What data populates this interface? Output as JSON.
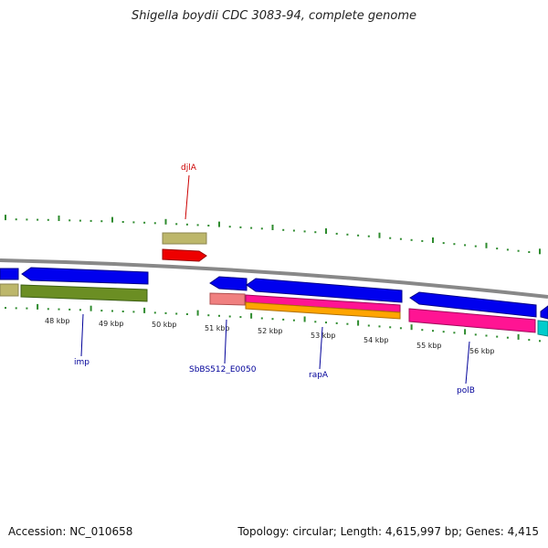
{
  "title": "Shigella boydii CDC 3083-94, complete genome",
  "footer": {
    "accession": "Accession: NC_010658",
    "summary": "Topology: circular; Length: 4,615,997 bp; Genes: 4,415"
  },
  "scale_labels": [
    "48 kbp",
    "49 kbp",
    "50 kbp",
    "51 kbp",
    "52 kbp",
    "53 kbp",
    "54 kbp",
    "55 kbp",
    "56 kbp"
  ],
  "gene_labels": [
    {
      "text": "djlA",
      "color": "#cc0000"
    },
    {
      "text": "imp",
      "color": "#000099"
    },
    {
      "text": "SbBS512_E0050",
      "color": "#000099"
    },
    {
      "text": "rapA",
      "color": "#000099"
    },
    {
      "text": "polB",
      "color": "#000099"
    }
  ],
  "colors": {
    "backbone": "#888888",
    "cds_forward": "#0000ee",
    "cds_reverse": "#0000ee",
    "tick": "#2e8b2e",
    "olive": "#6b8e23",
    "khaki": "#bdb76b",
    "red": "#ee0000",
    "salmon": "#f08080",
    "pink": "#ff1493",
    "orange": "#ffa500",
    "cyan": "#00cccc"
  }
}
